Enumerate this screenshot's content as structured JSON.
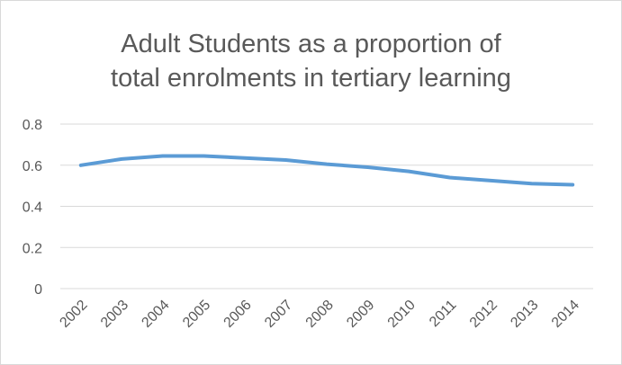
{
  "chart_data": {
    "type": "line",
    "title": "Adult Students as a proportion of total enrolments in tertiary learning",
    "xlabel": "",
    "ylabel": "",
    "x": [
      "2002",
      "2003",
      "2004",
      "2005",
      "2006",
      "2007",
      "2008",
      "2009",
      "2010",
      "2011",
      "2012",
      "2013",
      "2014"
    ],
    "series": [
      {
        "values": [
          0.6,
          0.63,
          0.645,
          0.645,
          0.635,
          0.625,
          0.605,
          0.59,
          0.57,
          0.54,
          0.525,
          0.51,
          0.505
        ]
      }
    ],
    "ylim": [
      0,
      0.8
    ],
    "yticks": [
      "0",
      "0.2",
      "0.4",
      "0.6",
      "0.8"
    ],
    "grid": true,
    "legend": "none",
    "line_color": "#5b9bd5",
    "grid_color": "#d9d9d9"
  },
  "title_lines": [
    "Adult Students as a proportion of",
    "total enrolments in tertiary learning"
  ]
}
